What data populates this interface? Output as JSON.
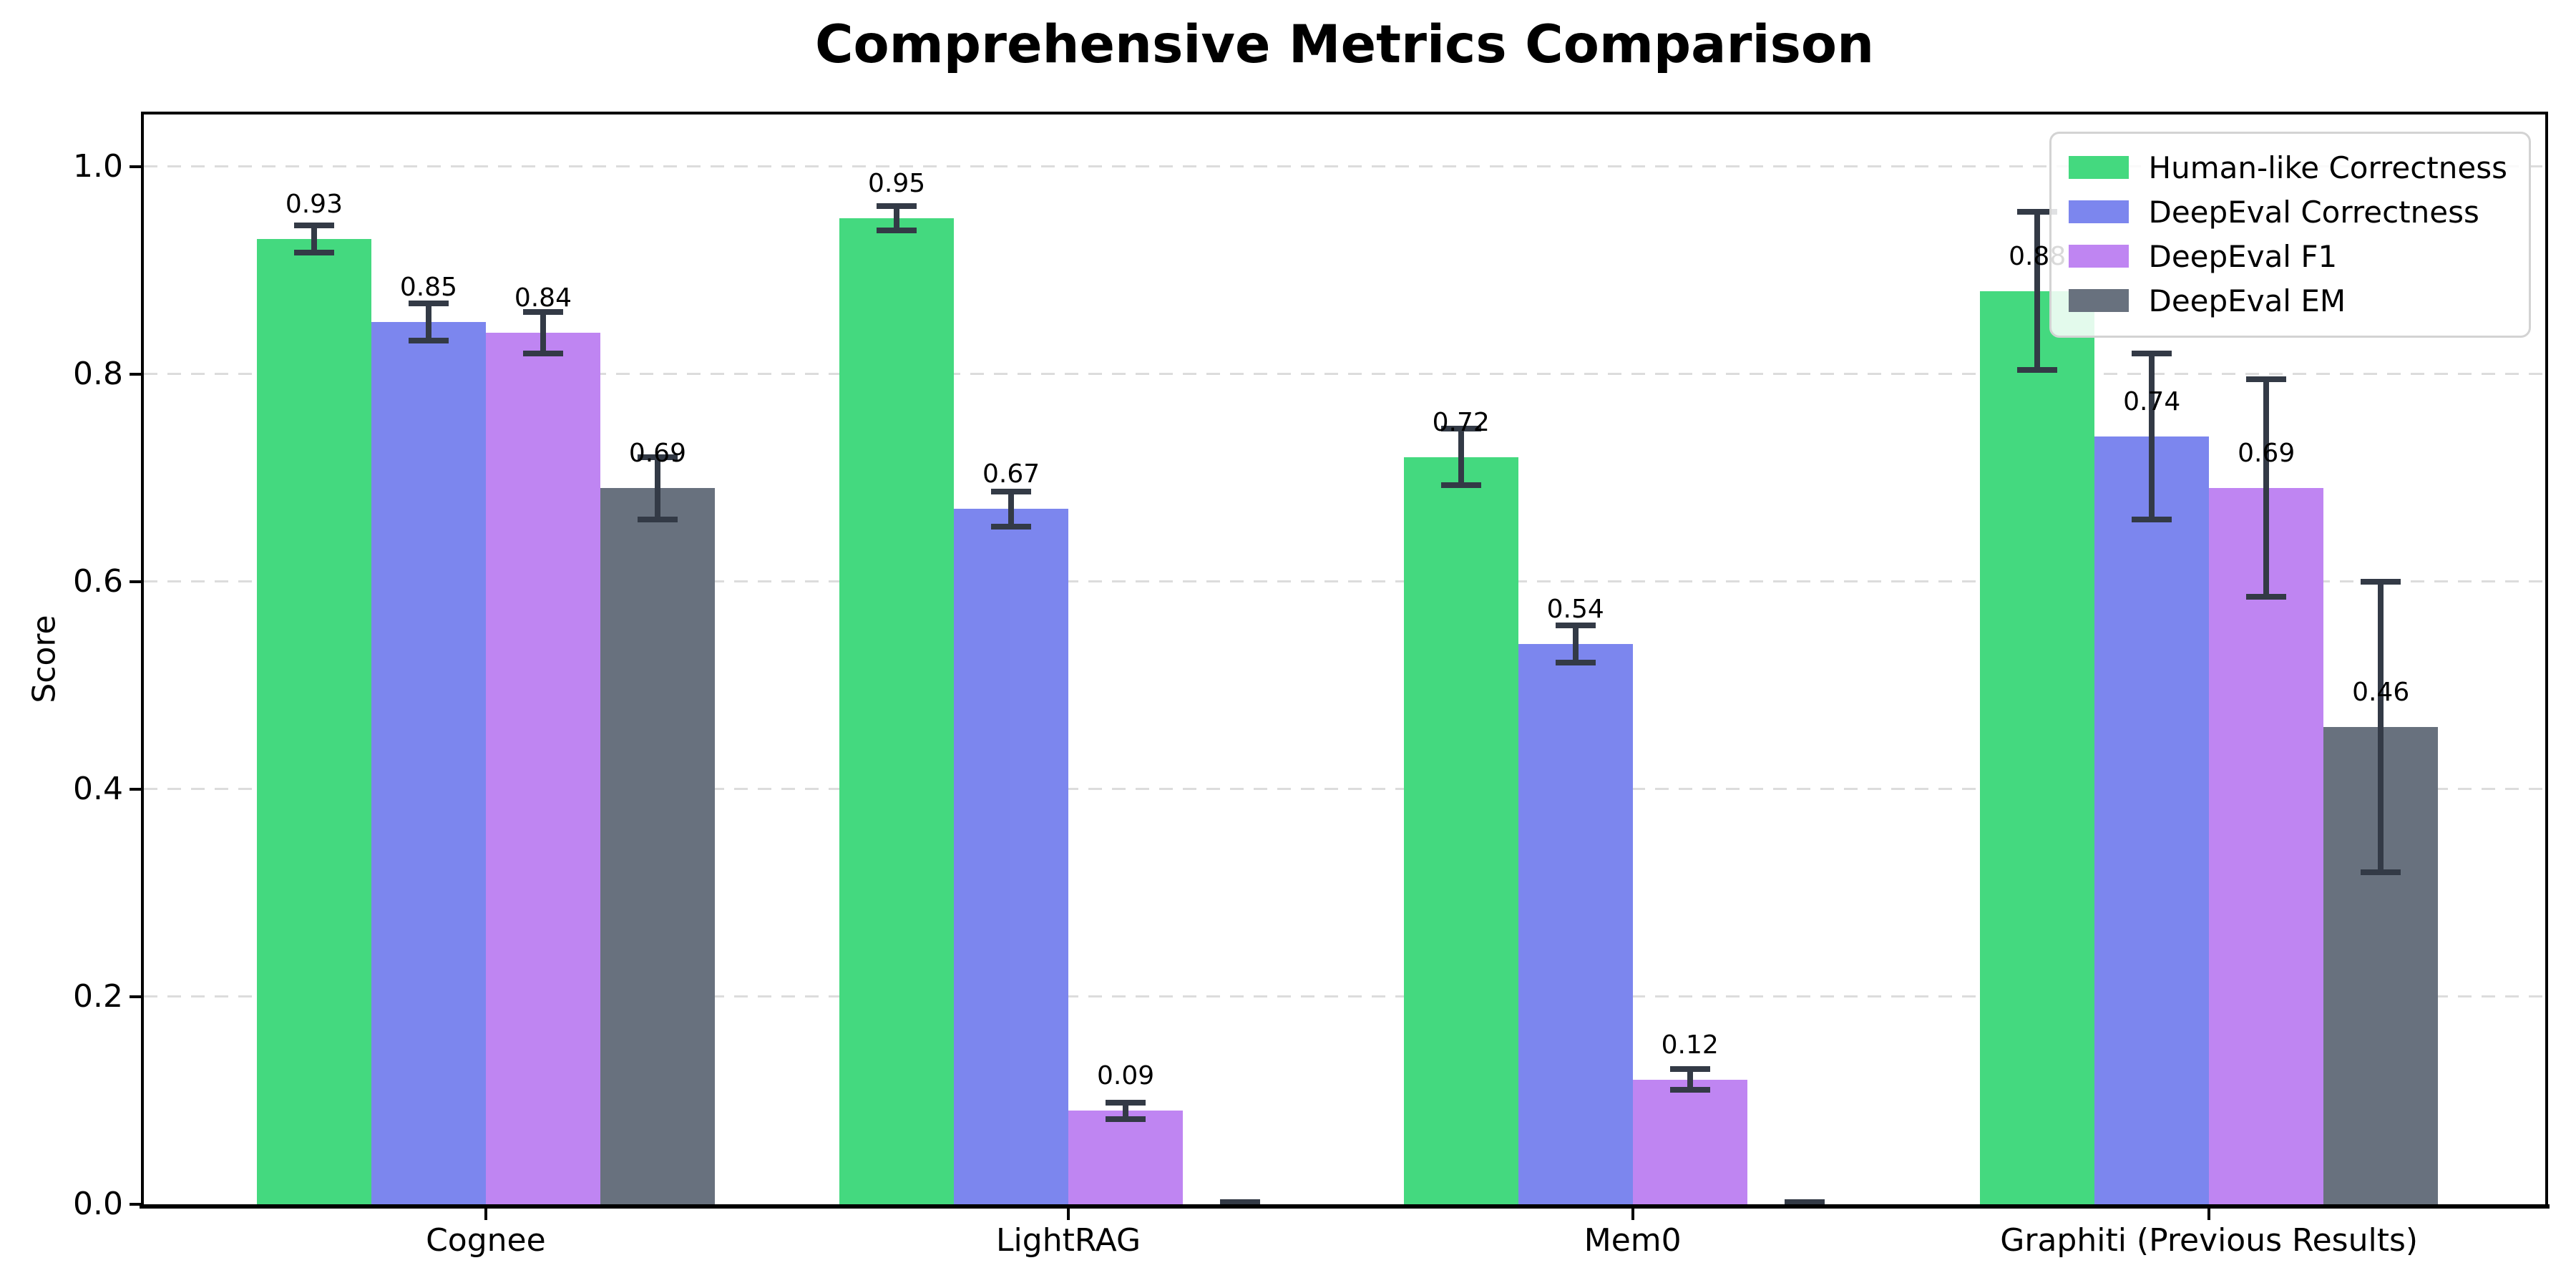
{
  "title": "Comprehensive Metrics Comparison",
  "chart_data": {
    "type": "bar",
    "title": "Comprehensive Metrics Comparison",
    "xlabel": "",
    "ylabel": "Score",
    "categories": [
      "Cognee",
      "LightRAG",
      "Mem0",
      "Graphiti (Previous Results)"
    ],
    "series": [
      {
        "name": "Human-like Correctness",
        "color": "#44d97f",
        "values": [
          0.93,
          0.95,
          0.72,
          0.88
        ],
        "errors": [
          0.013,
          0.012,
          0.027,
          0.076
        ],
        "labels": [
          "0.93",
          "0.95",
          "0.72",
          "0.88"
        ]
      },
      {
        "name": "DeepEval Correctness",
        "color": "#7c86ee",
        "values": [
          0.85,
          0.67,
          0.54,
          0.74
        ],
        "errors": [
          0.018,
          0.017,
          0.018,
          0.08
        ],
        "labels": [
          "0.85",
          "0.67",
          "0.54",
          "0.74"
        ]
      },
      {
        "name": "DeepEval F1",
        "color": "#bf85f2",
        "values": [
          0.84,
          0.09,
          0.12,
          0.69
        ],
        "errors": [
          0.02,
          0.008,
          0.01,
          0.105
        ],
        "labels": [
          "0.84",
          "0.09",
          "0.12",
          "0.69"
        ]
      },
      {
        "name": "DeepEval EM",
        "color": "#68717e",
        "values": [
          0.69,
          0.0,
          0.0,
          0.46
        ],
        "errors": [
          0.03,
          0.002,
          0.002,
          0.14
        ],
        "labels": [
          "0.69",
          "",
          "",
          "0.46"
        ]
      }
    ],
    "ylim": [
      0,
      1.05
    ],
    "yticks": [
      {
        "value": 0.0,
        "label": "0.0"
      },
      {
        "value": 0.2,
        "label": "0.2"
      },
      {
        "value": 0.4,
        "label": "0.4"
      },
      {
        "value": 0.6,
        "label": "0.6"
      },
      {
        "value": 0.8,
        "label": "0.8"
      },
      {
        "value": 1.0,
        "label": "1.0"
      }
    ],
    "grid": {
      "style": "dashed",
      "color": "#dcdcdc",
      "axis": "y"
    },
    "legend_position": "upper right",
    "colors": {
      "axis": "#000000",
      "error_bar": "#333a46",
      "background": "#ffffff",
      "legend_border": "#d3d3d3"
    }
  }
}
